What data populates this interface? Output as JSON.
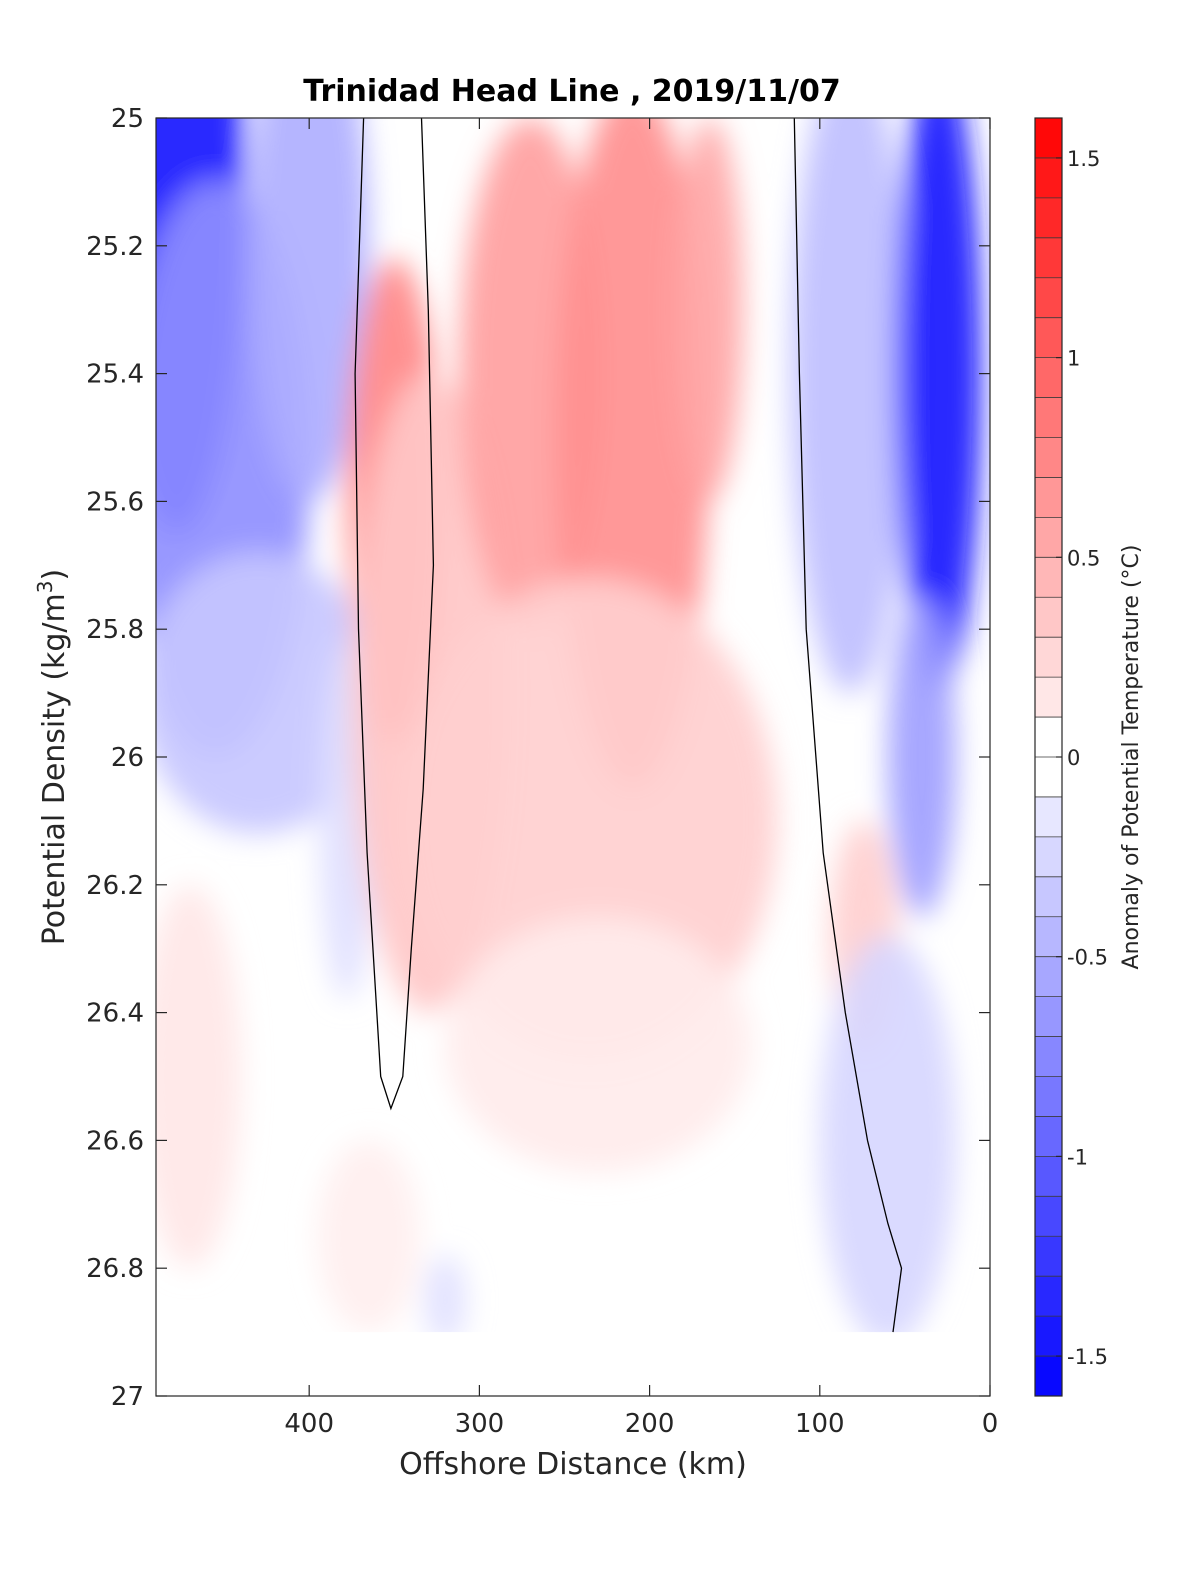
{
  "chart_data": {
    "type": "heatmap",
    "title": "Trinidad Head Line , 2019/11/07",
    "xlabel": "Offshore Distance (km)",
    "ylabel_main": "Potential Density (kg/m",
    "ylabel_sup": "3",
    "ylabel_close": ")",
    "colorbar_label": "Anomaly of Potential Temperature (°C)",
    "x_direction": "reversed",
    "y_direction": "reversed",
    "xlim": [
      490,
      0
    ],
    "ylim": [
      25,
      27
    ],
    "x_ticks": [
      400,
      300,
      200,
      100,
      0
    ],
    "x_tick_labels": [
      "400",
      "300",
      "200",
      "100",
      "0"
    ],
    "y_ticks": [
      25,
      25.2,
      25.4,
      25.6,
      25.8,
      26,
      26.2,
      26.4,
      26.6,
      26.8,
      27
    ],
    "y_tick_labels": [
      "25",
      "25.2",
      "25.4",
      "25.6",
      "25.8",
      "26",
      "26.2",
      "26.4",
      "26.6",
      "26.8",
      "27"
    ],
    "colorbar_range": [
      -1.6,
      1.6
    ],
    "colorbar_ticks": [
      1.5,
      1,
      0.5,
      0,
      -0.5,
      -1,
      -1.5
    ],
    "colorbar_tick_labels": [
      "1.5",
      "1",
      "0.5",
      "0",
      "-0.5",
      "-1",
      "-1.5"
    ],
    "colorbar_levels": 32,
    "colormap": {
      "low": "#0000ff",
      "mid": "#ffffff",
      "high": "#ff0000"
    },
    "data_floor_density": 26.9,
    "field_anomalies": [
      {
        "x": 478,
        "y": 25.1,
        "rx": 40,
        "ry": 0.55,
        "value": -1.45
      },
      {
        "x": 455,
        "y": 25.55,
        "rx": 55,
        "ry": 0.45,
        "value": -0.7
      },
      {
        "x": 430,
        "y": 25.9,
        "rx": 70,
        "ry": 0.22,
        "value": -0.35
      },
      {
        "x": 400,
        "y": 25.2,
        "rx": 35,
        "ry": 0.4,
        "value": -0.5
      },
      {
        "x": 378,
        "y": 26.1,
        "rx": 16,
        "ry": 0.28,
        "value": -0.2
      },
      {
        "x": 350,
        "y": 25.6,
        "rx": 28,
        "ry": 0.38,
        "value": 0.75
      },
      {
        "x": 330,
        "y": 25.9,
        "rx": 45,
        "ry": 0.5,
        "value": 0.35
      },
      {
        "x": 270,
        "y": 25.4,
        "rx": 42,
        "ry": 0.4,
        "value": 0.6
      },
      {
        "x": 210,
        "y": 25.5,
        "rx": 45,
        "ry": 0.55,
        "value": 0.7
      },
      {
        "x": 165,
        "y": 25.3,
        "rx": 20,
        "ry": 0.3,
        "value": 0.55
      },
      {
        "x": 235,
        "y": 26.1,
        "rx": 110,
        "ry": 0.38,
        "value": 0.3
      },
      {
        "x": 230,
        "y": 26.45,
        "rx": 90,
        "ry": 0.2,
        "value": 0.12
      },
      {
        "x": 74,
        "y": 26.28,
        "rx": 20,
        "ry": 0.18,
        "value": 0.3
      },
      {
        "x": 82,
        "y": 25.4,
        "rx": 35,
        "ry": 0.5,
        "value": -0.4
      },
      {
        "x": 30,
        "y": 25.4,
        "rx": 25,
        "ry": 0.5,
        "value": -1.45
      },
      {
        "x": 40,
        "y": 26.0,
        "rx": 20,
        "ry": 0.25,
        "value": -0.6
      },
      {
        "x": 60,
        "y": 26.6,
        "rx": 40,
        "ry": 0.32,
        "value": -0.25
      },
      {
        "x": 320,
        "y": 26.85,
        "rx": 12,
        "ry": 0.07,
        "value": -0.2
      },
      {
        "x": 470,
        "y": 26.5,
        "rx": 30,
        "ry": 0.3,
        "value": 0.15
      },
      {
        "x": 365,
        "y": 26.75,
        "rx": 30,
        "ry": 0.15,
        "value": 0.1
      }
    ],
    "zero_contours": [
      [
        [
          368,
          25.0
        ],
        [
          373,
          25.4
        ],
        [
          371,
          25.8
        ],
        [
          366,
          26.15
        ],
        [
          358,
          26.5
        ],
        [
          352,
          26.55
        ],
        [
          345,
          26.5
        ],
        [
          340,
          26.3
        ],
        [
          333,
          26.05
        ],
        [
          327,
          25.7
        ],
        [
          330,
          25.3
        ],
        [
          334,
          25.0
        ]
      ],
      [
        [
          115,
          25.0
        ],
        [
          112,
          25.4
        ],
        [
          108,
          25.8
        ],
        [
          98,
          26.15
        ],
        [
          85,
          26.4
        ],
        [
          72,
          26.6
        ],
        [
          60,
          26.73
        ],
        [
          52,
          26.8
        ],
        [
          57,
          26.9
        ]
      ]
    ]
  }
}
